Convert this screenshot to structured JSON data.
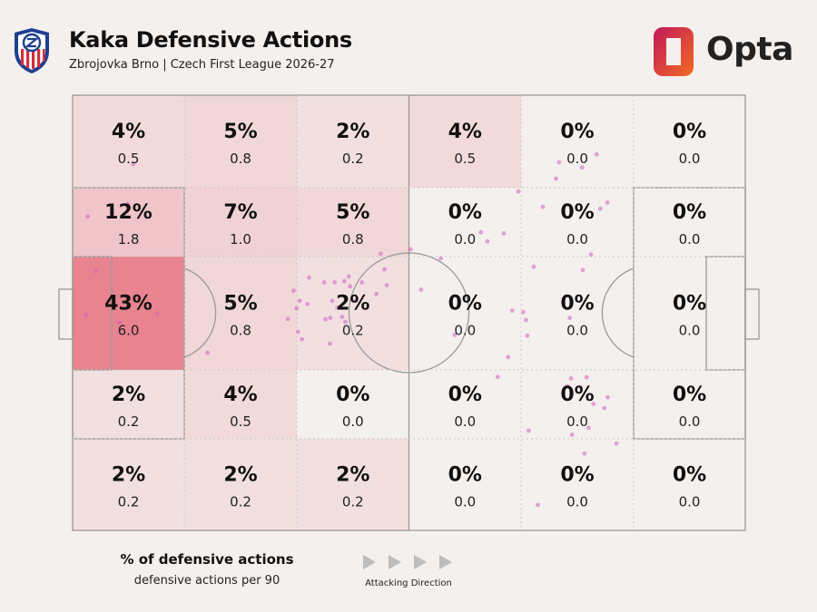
{
  "header": {
    "title": "Kaka Defensive Actions",
    "subtitle": "Zbrojovka Brno | Czech First League 2026-27",
    "brand": "Opta"
  },
  "legend": {
    "primary": "% of defensive actions",
    "secondary": "defensive actions per 90",
    "direction": "Attacking Direction"
  },
  "colors": {
    "background": "#f4f0ee",
    "pitch_lines": "#9a9a9a",
    "heat_max": "#e8838f",
    "dots": "#d45cc6",
    "opta_orange": "#f26b21",
    "opta_magenta": "#c2185b"
  },
  "chart_data": {
    "type": "heatmap",
    "title": "Kaka Defensive Actions",
    "subtitle": "Zbrojovka Brno | Czech First League 2026-27",
    "columns": 6,
    "rows": 5,
    "zones": [
      [
        {
          "pct": "4%",
          "p90": "0.5",
          "v": 4
        },
        {
          "pct": "5%",
          "p90": "0.8",
          "v": 5
        },
        {
          "pct": "2%",
          "p90": "0.2",
          "v": 2
        },
        {
          "pct": "4%",
          "p90": "0.5",
          "v": 4
        },
        {
          "pct": "0%",
          "p90": "0.0",
          "v": 0
        },
        {
          "pct": "0%",
          "p90": "0.0",
          "v": 0
        }
      ],
      [
        {
          "pct": "12%",
          "p90": "1.8",
          "v": 12
        },
        {
          "pct": "7%",
          "p90": "1.0",
          "v": 7
        },
        {
          "pct": "5%",
          "p90": "0.8",
          "v": 5
        },
        {
          "pct": "0%",
          "p90": "0.0",
          "v": 0
        },
        {
          "pct": "0%",
          "p90": "0.0",
          "v": 0
        },
        {
          "pct": "0%",
          "p90": "0.0",
          "v": 0
        }
      ],
      [
        {
          "pct": "43%",
          "p90": "6.0",
          "v": 43
        },
        {
          "pct": "5%",
          "p90": "0.8",
          "v": 5
        },
        {
          "pct": "2%",
          "p90": "0.2",
          "v": 2
        },
        {
          "pct": "0%",
          "p90": "0.0",
          "v": 0
        },
        {
          "pct": "0%",
          "p90": "0.0",
          "v": 0
        },
        {
          "pct": "0%",
          "p90": "0.0",
          "v": 0
        }
      ],
      [
        {
          "pct": "2%",
          "p90": "0.2",
          "v": 2
        },
        {
          "pct": "4%",
          "p90": "0.5",
          "v": 4
        },
        {
          "pct": "0%",
          "p90": "0.0",
          "v": 0
        },
        {
          "pct": "0%",
          "p90": "0.0",
          "v": 0
        },
        {
          "pct": "0%",
          "p90": "0.0",
          "v": 0
        },
        {
          "pct": "0%",
          "p90": "0.0",
          "v": 0
        }
      ],
      [
        {
          "pct": "2%",
          "p90": "0.2",
          "v": 2
        },
        {
          "pct": "2%",
          "p90": "0.2",
          "v": 2
        },
        {
          "pct": "2%",
          "p90": "0.2",
          "v": 2
        },
        {
          "pct": "0%",
          "p90": "0.0",
          "v": 0
        },
        {
          "pct": "0%",
          "p90": "0.0",
          "v": 0
        },
        {
          "pct": "0%",
          "p90": "0.0",
          "v": 0
        }
      ]
    ],
    "actions": [
      [
        19.0,
        18.0
      ],
      [
        30.1,
        16.4
      ],
      [
        33.4,
        4.5
      ],
      [
        48.5,
        6.9
      ],
      [
        60.7,
        4.0
      ],
      [
        62.7,
        14.0
      ],
      [
        60.2,
        25.1
      ],
      [
        71.0,
        40.1
      ],
      [
        53.9,
        65.7
      ],
      [
        50.3,
        70.3
      ],
      [
        50.0,
        82.1
      ],
      [
        56.7,
        67.5
      ],
      [
        52.7,
        82.5
      ],
      [
        58.6,
        78.7
      ],
      [
        51.3,
        80.8
      ],
      [
        61.4,
        76.6
      ],
      [
        51.6,
        74.8
      ],
      [
        62.5,
        81.1
      ],
      [
        54.8,
        90.3
      ],
      [
        51.6,
        86.0
      ],
      [
        56.7,
        84.1
      ],
      [
        61.8,
        75.2
      ],
      [
        61.1,
        80.1
      ],
      [
        51.6,
        77.9
      ],
      [
        56.7,
        77.2
      ],
      [
        57.6,
        69.8
      ],
      [
        52.4,
        93.4
      ],
      [
        68.5,
        76.5
      ],
      [
        61.7,
        64.0
      ],
      [
        65.2,
        67.0
      ],
      [
        67.3,
        68.2
      ],
      [
        58.8,
        66.6
      ],
      [
        48.0,
        92.7
      ],
      [
        45.0,
        109.5
      ],
      [
        42.5,
        100.5
      ],
      [
        43.7,
        91.6
      ],
      [
        37.8,
        121.4
      ],
      [
        40.3,
        123.3
      ],
      [
        38.1,
        128.2
      ],
      [
        53.6,
        103.6
      ],
      [
        66.1,
        113.6
      ],
      [
        59.4,
        130.7
      ],
      [
        66.3,
        135.2
      ],
      [
        62.0,
        134.8
      ],
      [
        59.8,
        134.0
      ],
      [
        47.3,
        137.1
      ],
      [
        30.8,
        139.8
      ],
      [
        26.5,
        132.5
      ],
      [
        29.6,
        159.0
      ],
      [
        19.9,
        151.5
      ],
      [
        23.0,
        143.7
      ],
      [
        18.5,
        144.6
      ],
      [
        16.3,
        155.8
      ],
      [
        31.3,
        156.9
      ],
      [
        43.9,
        154.1
      ],
      [
        48.2,
        151.7
      ],
      [
        61.4,
        147.8
      ],
      [
        80.2,
        147.0
      ],
      [
        72.2,
        129.5
      ],
      [
        77.7,
        126.4
      ],
      [
        92.5,
        135.6
      ],
      [
        113.0,
        138.3
      ],
      [
        78.1,
        148.2
      ],
      [
        77.8,
        152.8
      ],
      [
        93.6,
        148.5
      ],
      [
        80.5,
        151.1
      ],
      [
        85.1,
        154.9
      ],
      [
        86.3,
        158.1
      ],
      [
        98.8,
        152.2
      ],
      [
        83.3,
        159.1
      ],
      [
        91.7,
        153.4
      ],
      [
        96.0,
        161.7
      ]
    ],
    "legend": [
      "% of defensive actions",
      "defensive actions per 90"
    ],
    "annotations": [
      "Attacking Direction"
    ]
  }
}
